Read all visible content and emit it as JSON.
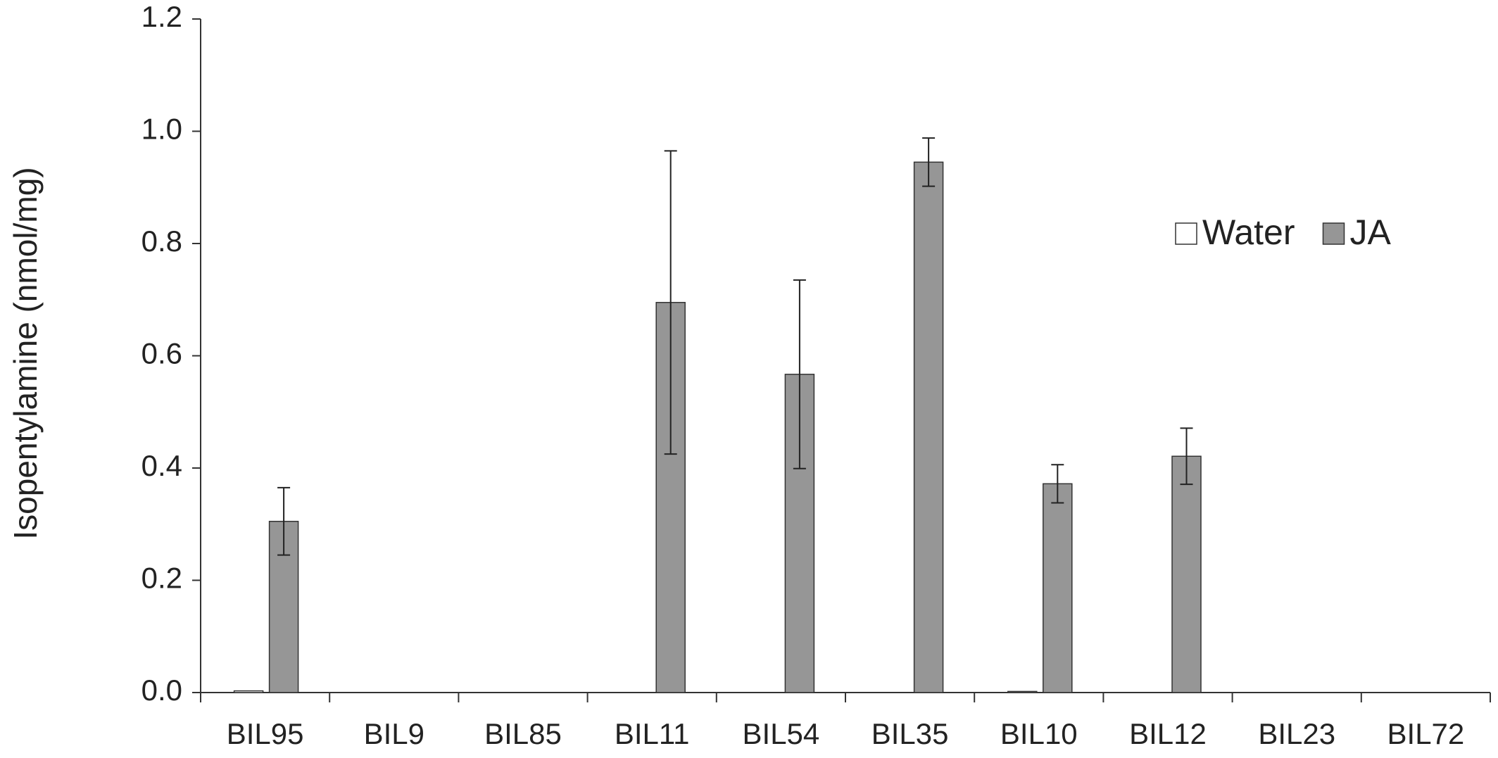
{
  "chart_data": {
    "type": "bar",
    "y_label": "Isopentylamine (nmol/mg)",
    "categories": [
      "BIL95",
      "BIL9",
      "BIL85",
      "BIL11",
      "BIL54",
      "BIL35",
      "BIL10",
      "BIL12",
      "BIL23",
      "BIL72"
    ],
    "series": [
      {
        "name": "Water",
        "color": "#ffffff",
        "values": [
          0.003,
          0,
          0,
          0,
          0,
          0,
          0.002,
          0,
          0,
          0
        ]
      },
      {
        "name": "JA",
        "color": "#969696",
        "values": [
          0.305,
          0,
          0,
          0.695,
          0.567,
          0.945,
          0.372,
          0.421,
          0,
          0
        ],
        "errors": [
          0.06,
          0,
          0,
          0.27,
          0.168,
          0.043,
          0.034,
          0.05,
          0,
          0
        ]
      }
    ],
    "ylim": [
      0,
      1.2
    ],
    "yticks": [
      {
        "value": 0,
        "label": "0.0"
      },
      0.2,
      0.4,
      0.6,
      0.8,
      {
        "value": 1,
        "label": "1.0"
      },
      1.2
    ],
    "legend": "upper right"
  }
}
